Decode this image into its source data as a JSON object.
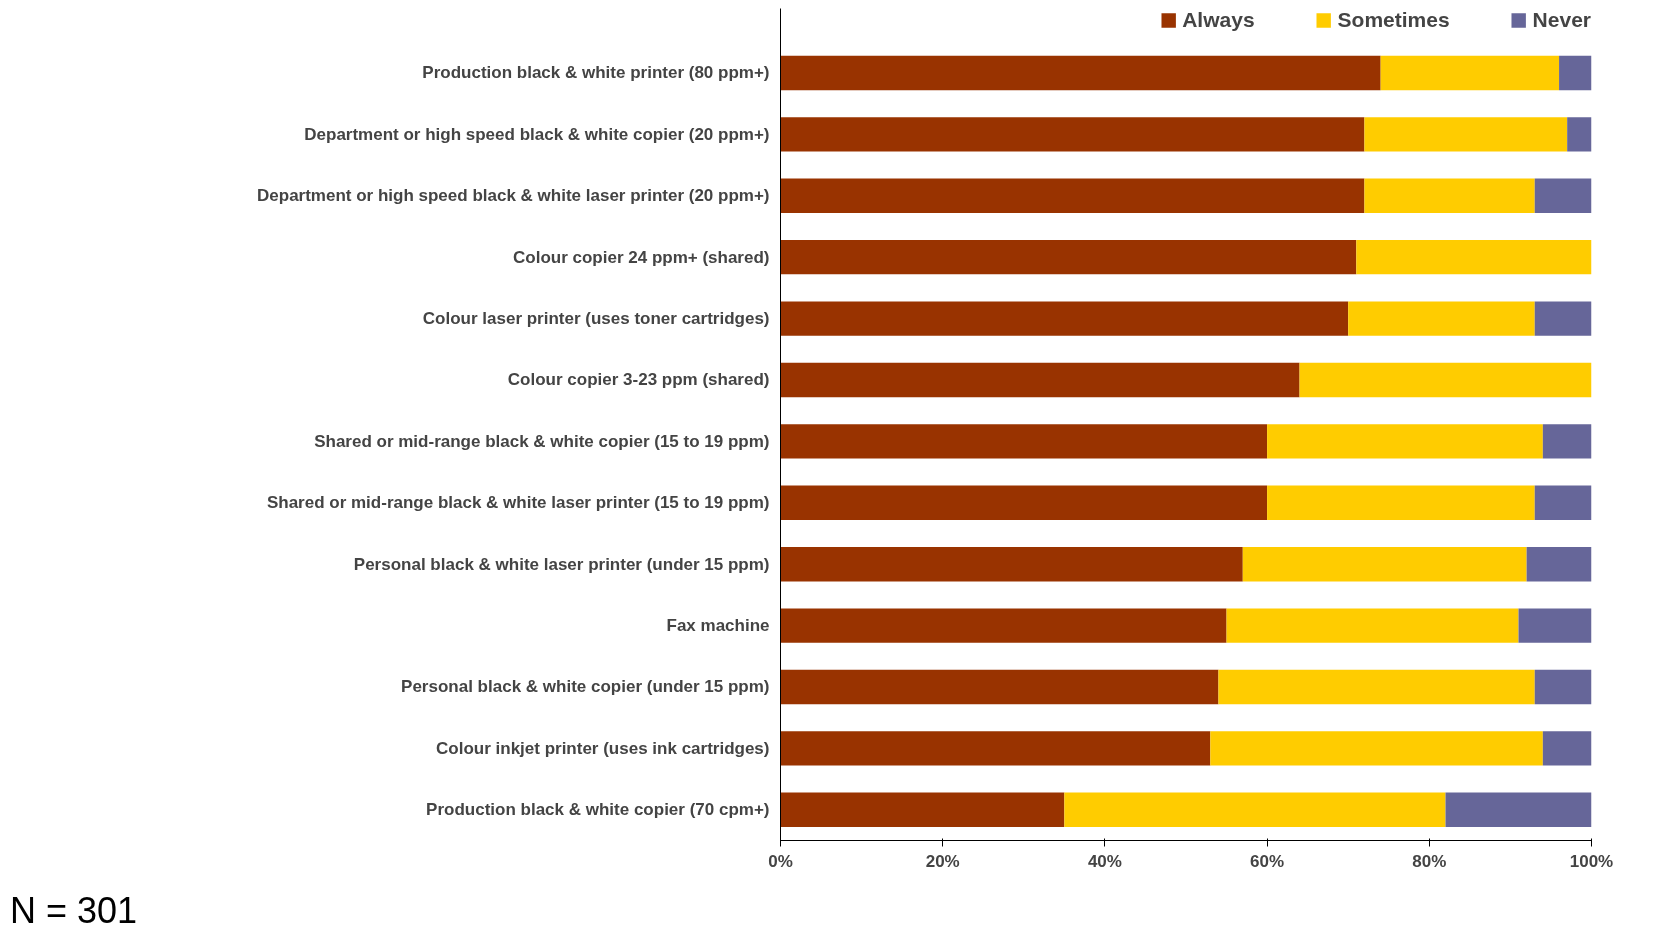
{
  "chart_data": {
    "type": "bar",
    "orientation": "horizontal",
    "stacked": true,
    "categories": [
      "Production black & white printer (80 ppm+)",
      "Department or high speed black & white copier (20 ppm+)",
      "Department or high speed black & white laser printer (20 ppm+)",
      "Colour copier 24 ppm+ (shared)",
      "Colour laser printer (uses toner cartridges)",
      "Colour copier 3-23 ppm (shared)",
      "Shared or mid-range black & white copier (15 to 19 ppm)",
      "Shared or mid-range black & white laser printer (15 to 19 ppm)",
      "Personal black & white laser printer (under 15 ppm)",
      "Fax machine",
      "Personal black & white copier (under 15 ppm)",
      "Colour inkjet printer (uses ink cartridges)",
      "Production black & white copier (70 cpm+)"
    ],
    "series": [
      {
        "name": "Always",
        "color": "#993300",
        "values": [
          74,
          72,
          72,
          71,
          70,
          64,
          60,
          60,
          57,
          55,
          54,
          53,
          35
        ]
      },
      {
        "name": "Sometimes",
        "color": "#ffcc00",
        "values": [
          22,
          25,
          21,
          29,
          23,
          36,
          34,
          33,
          35,
          36,
          39,
          41,
          47
        ]
      },
      {
        "name": "Never",
        "color": "#666699",
        "values": [
          4,
          3,
          7,
          0,
          7,
          0,
          6,
          7,
          8,
          9,
          7,
          6,
          18
        ]
      }
    ],
    "xlim": [
      0,
      100
    ],
    "xticks": [
      {
        "value": 0,
        "label": "0%"
      },
      {
        "value": 20,
        "label": "20%"
      },
      {
        "value": 40,
        "label": "40%"
      },
      {
        "value": 60,
        "label": "60%"
      },
      {
        "value": 80,
        "label": "80%"
      },
      {
        "value": 100,
        "label": "100%"
      }
    ],
    "grid": false,
    "legend": "top right",
    "annotations": [
      "N = 301"
    ]
  }
}
